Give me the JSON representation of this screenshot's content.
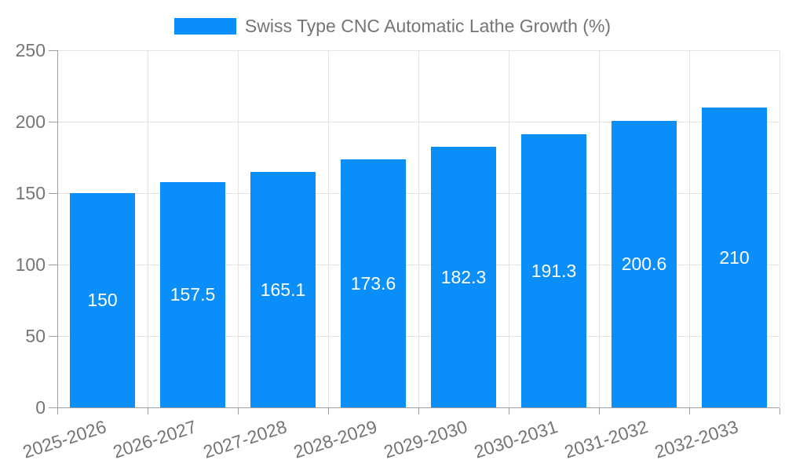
{
  "chart_data": {
    "type": "bar",
    "legend": "Swiss Type CNC Automatic Lathe Growth (%)",
    "legend_position": "top",
    "categories": [
      "2025-2026",
      "2026-2027",
      "2027-2028",
      "2028-2029",
      "2029-2030",
      "2030-2031",
      "2031-2032",
      "2032-2033"
    ],
    "values": [
      150,
      157.5,
      165.1,
      173.6,
      182.3,
      191.3,
      200.6,
      210
    ],
    "value_labels": [
      "150",
      "157.5",
      "165.1",
      "173.6",
      "182.3",
      "191.3",
      "200.6",
      "210"
    ],
    "xlabel": "",
    "ylabel": "",
    "ylim": [
      0,
      250
    ],
    "yticks": [
      0,
      50,
      100,
      150,
      200,
      250
    ],
    "grid": true,
    "colors": {
      "bar": "#0a8efa",
      "bar_value_text": "#ffffff",
      "axis_text": "#757575",
      "legend_text": "#757575",
      "grid_line": "#e3e3e3",
      "axis_line": "#9e9e9e",
      "background": "#ffffff"
    }
  }
}
